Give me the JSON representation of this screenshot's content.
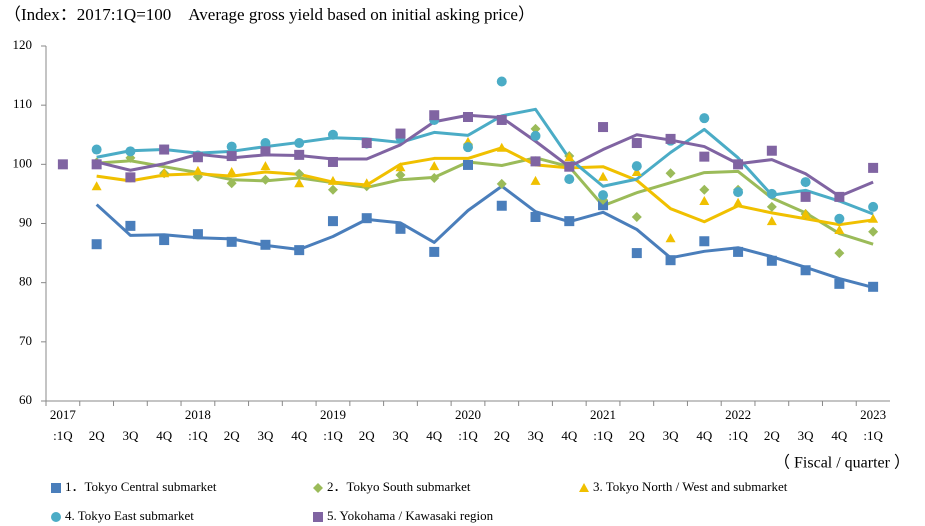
{
  "chart_data": {
    "type": "scatter-trend",
    "title": "（Index：2017:1Q=100　Average gross yield based on initial asking price）",
    "x_label": "（ Fiscal / quarter ）",
    "categories": [
      ":1Q",
      "2Q",
      "3Q",
      "4Q",
      ":1Q",
      "2Q",
      "3Q",
      "4Q",
      ":1Q",
      "2Q",
      "3Q",
      "4Q",
      ":1Q",
      "2Q",
      "3Q",
      "4Q",
      ":1Q",
      "2Q",
      "3Q",
      "4Q",
      ":1Q",
      "2Q",
      "3Q",
      "4Q",
      ":1Q"
    ],
    "category_years": [
      "2017",
      null,
      null,
      null,
      "2018",
      null,
      null,
      null,
      "2019",
      null,
      null,
      null,
      "2020",
      null,
      null,
      null,
      "2021",
      null,
      null,
      null,
      "2022",
      null,
      null,
      null,
      "2023"
    ],
    "ylim": [
      60,
      120
    ],
    "yticks": [
      60,
      70,
      80,
      90,
      100,
      110,
      120
    ],
    "series": [
      {
        "name": "1．Tokyo Central submarket",
        "color": "#4a7ebb",
        "marker": "square",
        "values": [
          null,
          86.5,
          89.6,
          87.2,
          88.2,
          86.9,
          86.4,
          85.5,
          90.4,
          90.9,
          89.1,
          85.2,
          99.9,
          93.0,
          91.1,
          90.4,
          93.1,
          85.0,
          83.8,
          87.0,
          85.2,
          83.7,
          82.1,
          79.8,
          79.3
        ],
        "trend_values": [
          null,
          93.2,
          88.0,
          88.1,
          87.6,
          87.4,
          86.3,
          85.6,
          87.8,
          90.7,
          90.1,
          86.8,
          92.2,
          96.3,
          92.0,
          90.3,
          91.9,
          89.0,
          84.2,
          85.3,
          85.9,
          84.4,
          82.6,
          80.7,
          79.2
        ]
      },
      {
        "name": "2．Tokyo South submarket",
        "color": "#9bbb59",
        "marker": "diamond",
        "values": [
          null,
          100.3,
          101.1,
          98.5,
          97.9,
          96.8,
          97.4,
          98.4,
          95.7,
          96.3,
          98.2,
          97.7,
          103.4,
          96.7,
          106.0,
          101.4,
          94.0,
          91.1,
          98.5,
          95.7,
          95.7,
          92.8,
          91.6,
          85.0,
          88.6
        ],
        "trend_values": [
          null,
          100.2,
          100.6,
          99.6,
          98.6,
          97.4,
          97.2,
          97.7,
          96.9,
          96.1,
          97.4,
          97.8,
          100.4,
          99.8,
          101.1,
          99.6,
          93.0,
          95.2,
          96.9,
          98.6,
          98.8,
          94.3,
          91.8,
          88.3,
          86.5
        ]
      },
      {
        "name": "3. Tokyo North / West and  submarket",
        "color": "#f0c000",
        "marker": "triangle",
        "values": [
          null,
          96.3,
          97.7,
          98.5,
          98.9,
          98.7,
          99.7,
          96.8,
          97.2,
          96.8,
          99.5,
          99.7,
          103.8,
          102.8,
          97.2,
          101.2,
          97.9,
          98.7,
          87.5,
          93.8,
          93.5,
          90.4,
          91.6,
          88.9,
          90.8
        ],
        "trend_values": [
          null,
          98.0,
          97.2,
          98.2,
          98.4,
          98.0,
          98.7,
          98.3,
          97.0,
          96.5,
          100.0,
          101.0,
          101.0,
          102.8,
          99.9,
          99.4,
          99.6,
          97.3,
          92.5,
          90.3,
          93.0,
          91.8,
          90.8,
          89.8,
          90.6
        ]
      },
      {
        "name": "4. Tokyo East submarket",
        "color": "#4bacc6",
        "marker": "circle",
        "values": [
          null,
          102.5,
          102.2,
          102.5,
          101.5,
          103.0,
          103.6,
          103.6,
          105.0,
          103.5,
          104.5,
          107.5,
          102.9,
          114.0,
          104.8,
          97.5,
          94.8,
          99.7,
          104.0,
          107.8,
          95.3,
          95.0,
          97.0,
          90.8,
          92.8
        ],
        "trend_values": [
          null,
          101.2,
          102.3,
          102.5,
          101.9,
          102.2,
          103.0,
          103.7,
          104.5,
          104.3,
          103.7,
          105.4,
          104.9,
          108.2,
          109.3,
          101.0,
          96.3,
          97.5,
          102.0,
          105.9,
          101.1,
          94.8,
          95.6,
          93.8,
          91.6
        ]
      },
      {
        "name": "5. Yokohama / Kawasaki region",
        "color": "#8064a2",
        "marker": "square",
        "values": [
          100.0,
          100.0,
          97.8,
          102.5,
          101.2,
          101.4,
          102.2,
          101.6,
          100.4,
          103.6,
          105.2,
          108.3,
          108.0,
          107.5,
          100.5,
          99.6,
          106.3,
          103.6,
          104.3,
          101.3,
          100.0,
          102.3,
          94.5,
          94.5,
          99.4
        ],
        "trend_values": [
          null,
          100.4,
          99.0,
          100.1,
          101.7,
          101.1,
          101.6,
          101.5,
          100.9,
          100.9,
          103.3,
          107.2,
          108.3,
          107.9,
          103.9,
          99.6,
          102.5,
          105.0,
          104.1,
          103.0,
          100.1,
          100.8,
          98.4,
          94.6,
          97.0
        ]
      }
    ]
  }
}
